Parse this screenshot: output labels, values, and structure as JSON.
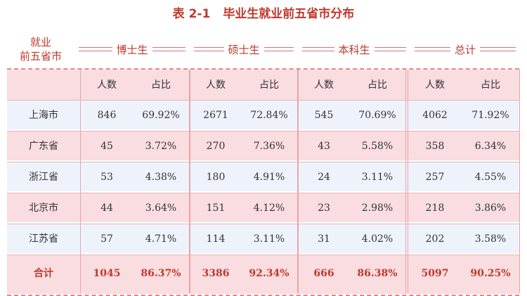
{
  "title": {
    "number": "表 2-1",
    "text": "毕业生就业前五省市分布"
  },
  "corner": {
    "line1": "就业",
    "line2": "前五省市"
  },
  "groups": [
    {
      "label": "博士生"
    },
    {
      "label": "硕士生"
    },
    {
      "label": "本科生"
    },
    {
      "label": "总计"
    }
  ],
  "subheaders": {
    "count": "人数",
    "ratio": "占比"
  },
  "rows": [
    {
      "name": "上海市",
      "cells": [
        "846",
        "69.92%",
        "2671",
        "72.84%",
        "545",
        "70.69%",
        "4062",
        "71.92%"
      ]
    },
    {
      "name": "广东省",
      "cells": [
        "45",
        "3.72%",
        "270",
        "7.36%",
        "43",
        "5.58%",
        "358",
        "6.34%"
      ]
    },
    {
      "name": "浙江省",
      "cells": [
        "53",
        "4.38%",
        "180",
        "4.91%",
        "24",
        "3.11%",
        "257",
        "4.55%"
      ]
    },
    {
      "name": "北京市",
      "cells": [
        "44",
        "3.64%",
        "151",
        "4.12%",
        "23",
        "2.98%",
        "218",
        "3.86%"
      ]
    },
    {
      "name": "江苏省",
      "cells": [
        "57",
        "4.71%",
        "114",
        "3.11%",
        "31",
        "4.02%",
        "202",
        "3.58%"
      ]
    }
  ],
  "total": {
    "name": "合计",
    "cells": [
      "1045",
      "86.37%",
      "3386",
      "92.34%",
      "666",
      "86.38%",
      "5097",
      "90.25%"
    ]
  },
  "colors": {
    "accent": "#c0392b",
    "pink_row": "#f9dde0",
    "blue_row": "#eef3fb"
  }
}
